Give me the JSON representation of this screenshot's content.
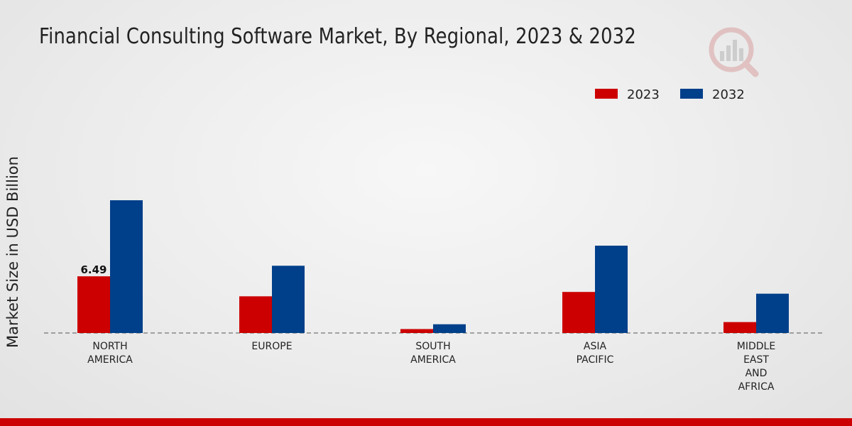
{
  "title": "Financial Consulting Software Market, By Regional, 2023 & 2032",
  "colors": {
    "series_2023": "#cc0000",
    "series_2032": "#003f8a",
    "footer": "#cc0000"
  },
  "logo_icon": "market-research-logo-icon",
  "chart_data": {
    "type": "bar",
    "title": "Financial Consulting Software Market, By Regional, 2023 & 2032",
    "xlabel": "",
    "ylabel": "Market Size in USD Billion",
    "categories": [
      [
        "NORTH",
        "AMERICA"
      ],
      [
        "EUROPE"
      ],
      [
        "SOUTH",
        "AMERICA"
      ],
      [
        "ASIA",
        "PACIFIC"
      ],
      [
        "MIDDLE",
        "EAST",
        "AND",
        "AFRICA"
      ]
    ],
    "series": [
      {
        "name": "2023",
        "color": "#cc0000",
        "values": [
          6.49,
          4.2,
          0.45,
          4.7,
          1.25
        ]
      },
      {
        "name": "2032",
        "color": "#003f8a",
        "values": [
          15.2,
          7.7,
          1.0,
          10.0,
          4.5
        ]
      }
    ],
    "data_labels": [
      {
        "series": 0,
        "index": 0,
        "text": "6.49"
      }
    ],
    "ylim": [
      0,
      30
    ],
    "grid": false,
    "legend": "top-right"
  }
}
